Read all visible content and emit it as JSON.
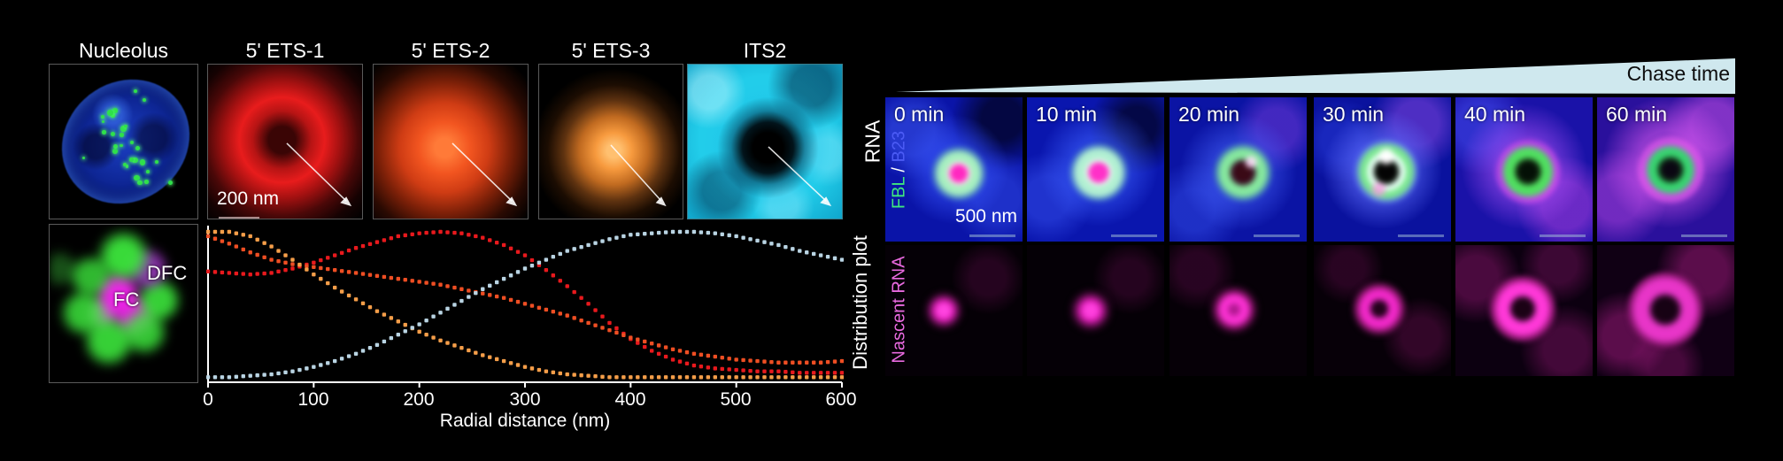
{
  "colors": {
    "background": "#000000",
    "wedge": "#cfe8ee",
    "fbl_green": "#3fe87e",
    "b23_blue": "#4b5bf5",
    "nascent_magenta": "#e96ae0",
    "axis": "#ffffff"
  },
  "left_block": {
    "panel_titles": [
      "Nucleolus",
      "5' ETS-1",
      "5' ETS-2",
      "5' ETS-3",
      "ITS2"
    ],
    "row1_side_label": "RNA",
    "scale_bar_label": "200 nm",
    "inset": {
      "dfc_label": "DFC",
      "fc_label": "FC"
    }
  },
  "chart_data": {
    "type": "scatter",
    "style": "dotted-curves",
    "title": "",
    "xlabel": "Radial distance (nm)",
    "ylabel": "Distribution plot",
    "xlim": [
      0,
      600
    ],
    "ylim": [
      0,
      1
    ],
    "xticks": [
      0,
      100,
      200,
      300,
      400,
      500,
      600
    ],
    "x_step": 20,
    "grid": false,
    "legend": "none (series colors match RNA panel colors)",
    "series": [
      {
        "name": "5' ETS-1",
        "color": "#e8191d",
        "values": [
          0.73,
          0.72,
          0.71,
          0.72,
          0.75,
          0.79,
          0.84,
          0.89,
          0.93,
          0.97,
          0.99,
          1.0,
          0.99,
          0.96,
          0.91,
          0.84,
          0.74,
          0.63,
          0.51,
          0.38,
          0.27,
          0.19,
          0.13,
          0.09,
          0.07,
          0.06,
          0.05,
          0.05,
          0.04,
          0.04,
          0.04
        ]
      },
      {
        "name": "5' ETS-2",
        "color": "#ee4e23",
        "values": [
          0.97,
          0.92,
          0.86,
          0.81,
          0.78,
          0.76,
          0.74,
          0.72,
          0.7,
          0.68,
          0.66,
          0.64,
          0.61,
          0.58,
          0.55,
          0.51,
          0.47,
          0.43,
          0.38,
          0.33,
          0.28,
          0.24,
          0.2,
          0.17,
          0.15,
          0.13,
          0.12,
          0.11,
          0.11,
          0.11,
          0.12
        ]
      },
      {
        "name": "5' ETS-3",
        "color": "#f59e49",
        "values": [
          1.0,
          1.0,
          0.97,
          0.9,
          0.81,
          0.71,
          0.62,
          0.54,
          0.46,
          0.39,
          0.32,
          0.26,
          0.21,
          0.16,
          0.12,
          0.08,
          0.05,
          0.03,
          0.02,
          0.01,
          0.01,
          0.01,
          0.01,
          0.01,
          0.01,
          0.01,
          0.01,
          0.01,
          0.01,
          0.01,
          0.01
        ]
      },
      {
        "name": "ITS2",
        "color": "#b9d4e3",
        "values": [
          0.01,
          0.01,
          0.02,
          0.03,
          0.05,
          0.08,
          0.12,
          0.17,
          0.23,
          0.3,
          0.37,
          0.45,
          0.53,
          0.61,
          0.68,
          0.75,
          0.81,
          0.87,
          0.91,
          0.95,
          0.98,
          0.99,
          1.0,
          1.0,
          0.99,
          0.97,
          0.94,
          0.91,
          0.87,
          0.84,
          0.81
        ]
      }
    ]
  },
  "right_block": {
    "chase_label": "Chase time",
    "time_labels": [
      "0 min",
      "10 min",
      "20 min",
      "30 min",
      "40 min",
      "60 min"
    ],
    "row1_side_label": {
      "part1": "FBL",
      "separator": " / ",
      "part2": "B23"
    },
    "row2_side_label": "Nascent RNA",
    "scale_bar_label": "500 nm"
  }
}
